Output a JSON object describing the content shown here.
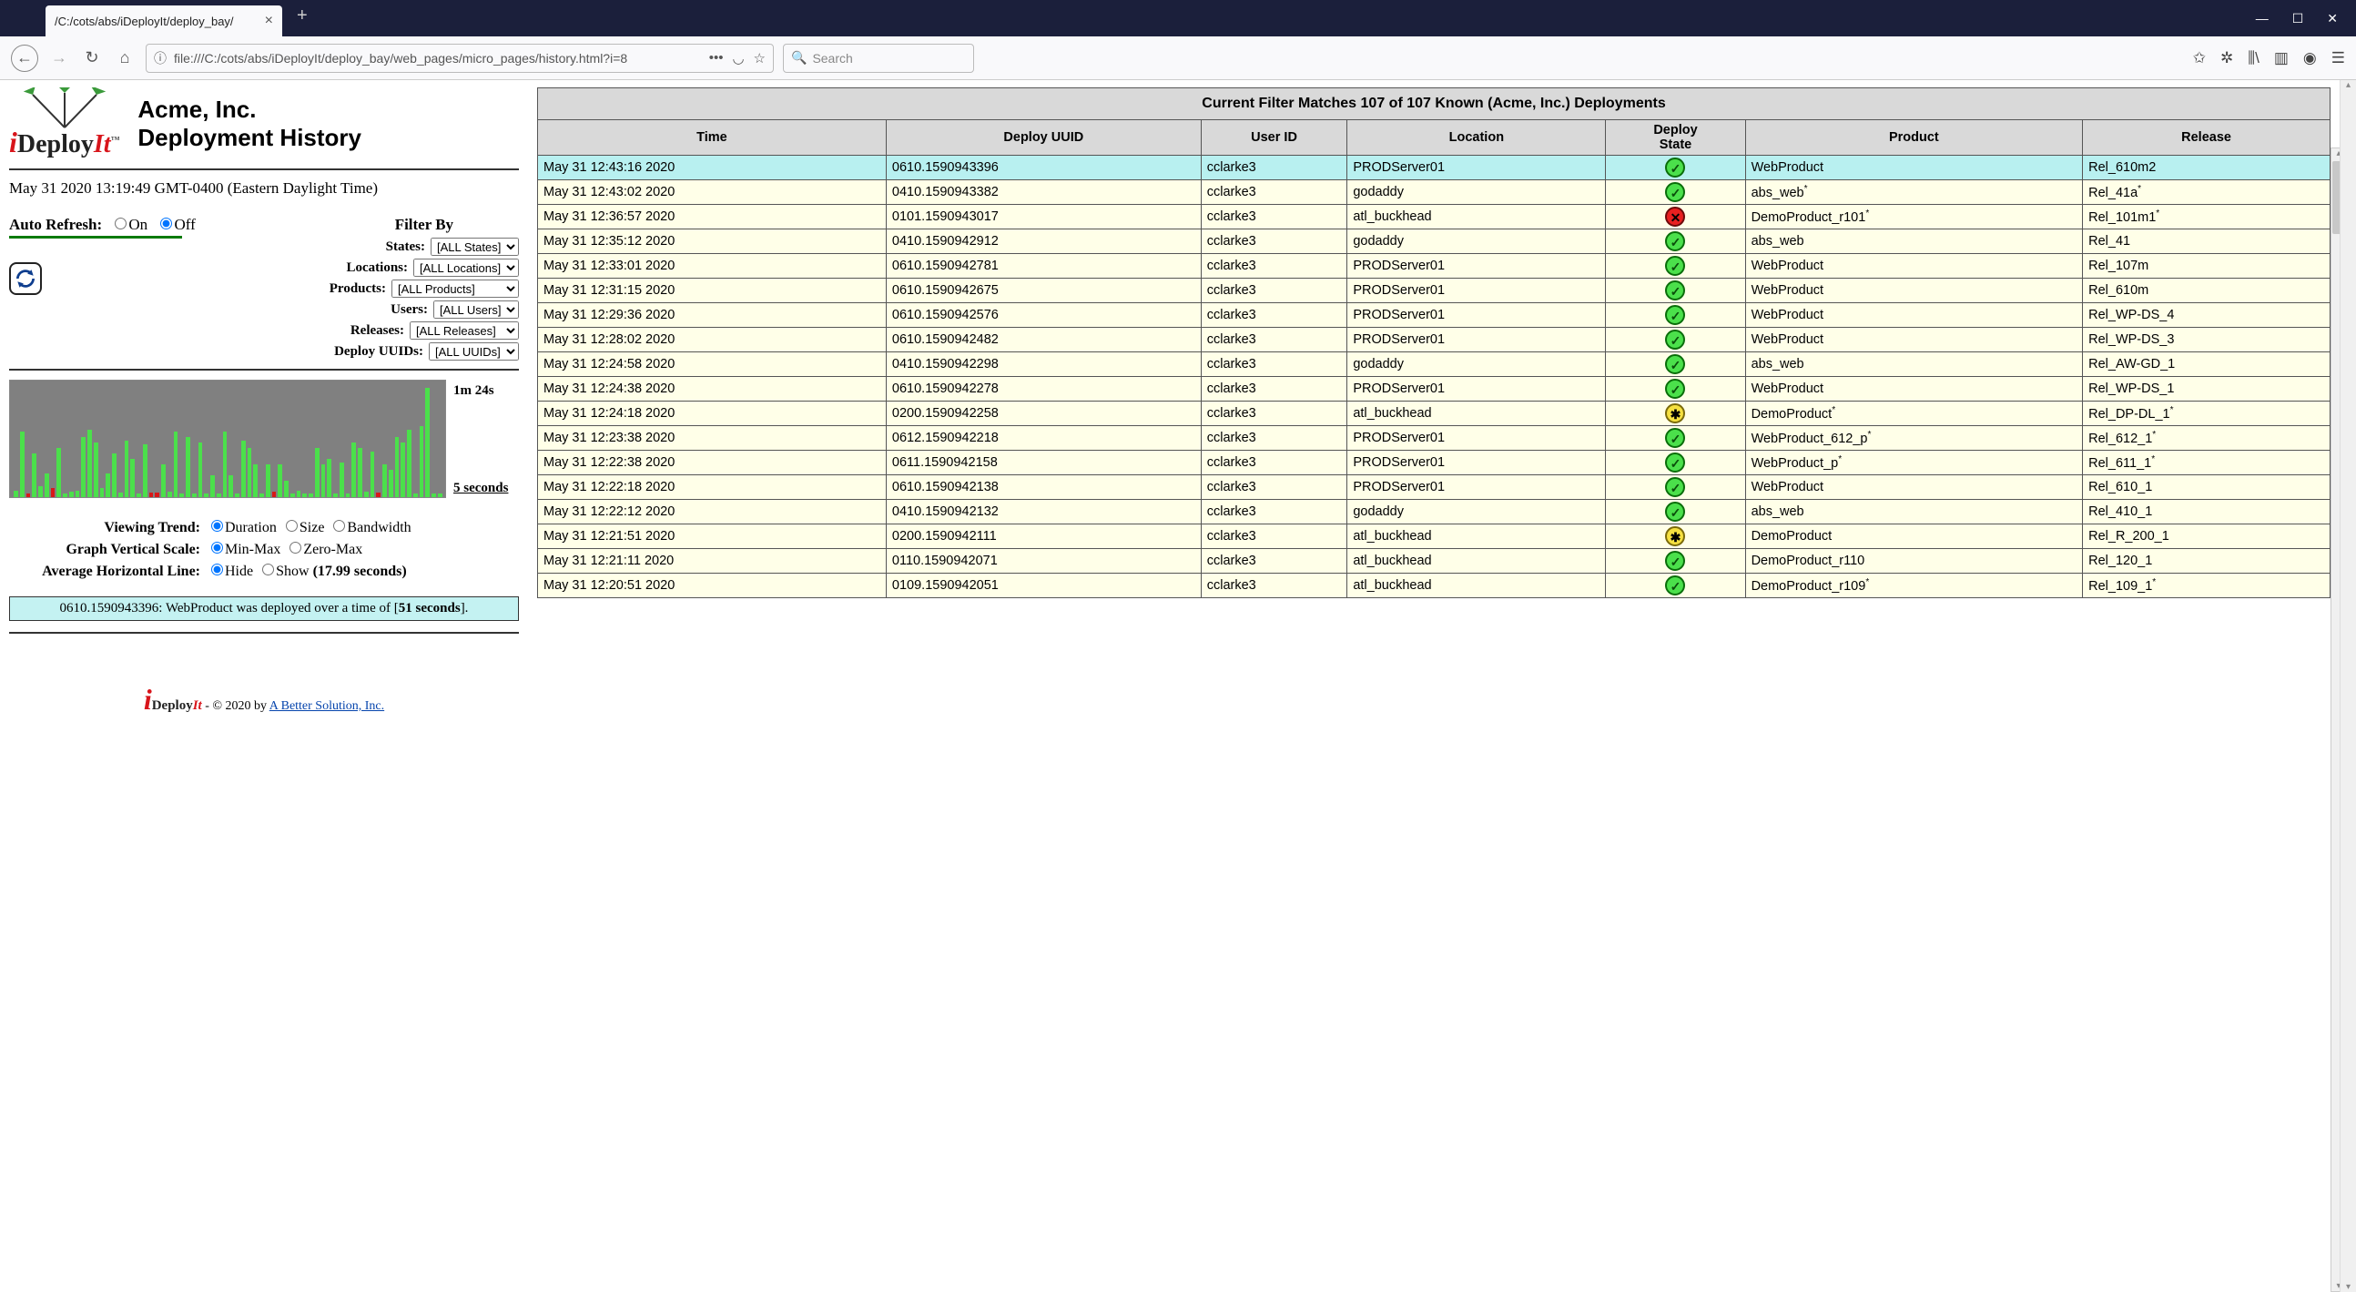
{
  "browser": {
    "tab_title": "/C:/cots/abs/iDeployIt/deploy_bay/",
    "url": "file:///C:/cots/abs/iDeployIt/deploy_bay/web_pages/micro_pages/history.html?i=8",
    "search_placeholder": "Search"
  },
  "page": {
    "company": "Acme, Inc.",
    "page_title": "Deployment History",
    "timestamp": "May 31 2020 13:19:49 GMT-0400 (Eastern Daylight Time)",
    "auto_refresh_label": "Auto Refresh:",
    "on_label": "On",
    "off_label": "Off",
    "auto_refresh_value": "Off",
    "filter_by_label": "Filter By",
    "filters": {
      "states": {
        "label": "States:",
        "value": "[ALL States]"
      },
      "locations": {
        "label": "Locations:",
        "value": "[ALL Locations]"
      },
      "products": {
        "label": "Products:",
        "value": "[ALL Products]"
      },
      "users": {
        "label": "Users:",
        "value": "[ALL Users]"
      },
      "releases": {
        "label": "Releases:",
        "value": "[ALL Releases]"
      },
      "uuids": {
        "label": "Deploy UUIDs:",
        "value": "[ALL UUIDs]"
      }
    },
    "chart": {
      "max_label": "1m 24s",
      "min_label": "5 seconds",
      "bg_color": "#808080",
      "bar_color_ok": "#4be04b",
      "bar_color_fail": "#d81818",
      "bars": [
        {
          "h": 6,
          "c": "ok"
        },
        {
          "h": 60,
          "c": "ok"
        },
        {
          "h": 3,
          "c": "fail"
        },
        {
          "h": 40,
          "c": "ok"
        },
        {
          "h": 10,
          "c": "ok"
        },
        {
          "h": 22,
          "c": "ok"
        },
        {
          "h": 8,
          "c": "fail"
        },
        {
          "h": 45,
          "c": "ok"
        },
        {
          "h": 3,
          "c": "ok"
        },
        {
          "h": 5,
          "c": "ok"
        },
        {
          "h": 6,
          "c": "ok"
        },
        {
          "h": 55,
          "c": "ok"
        },
        {
          "h": 62,
          "c": "ok"
        },
        {
          "h": 50,
          "c": "ok"
        },
        {
          "h": 8,
          "c": "ok"
        },
        {
          "h": 22,
          "c": "ok"
        },
        {
          "h": 40,
          "c": "ok"
        },
        {
          "h": 4,
          "c": "ok"
        },
        {
          "h": 52,
          "c": "ok"
        },
        {
          "h": 35,
          "c": "ok"
        },
        {
          "h": 3,
          "c": "ok"
        },
        {
          "h": 48,
          "c": "ok"
        },
        {
          "h": 4,
          "c": "fail"
        },
        {
          "h": 4,
          "c": "fail"
        },
        {
          "h": 30,
          "c": "ok"
        },
        {
          "h": 5,
          "c": "ok"
        },
        {
          "h": 60,
          "c": "ok"
        },
        {
          "h": 3,
          "c": "ok"
        },
        {
          "h": 55,
          "c": "ok"
        },
        {
          "h": 3,
          "c": "ok"
        },
        {
          "h": 50,
          "c": "ok"
        },
        {
          "h": 3,
          "c": "ok"
        },
        {
          "h": 20,
          "c": "ok"
        },
        {
          "h": 3,
          "c": "ok"
        },
        {
          "h": 60,
          "c": "ok"
        },
        {
          "h": 20,
          "c": "ok"
        },
        {
          "h": 3,
          "c": "ok"
        },
        {
          "h": 52,
          "c": "ok"
        },
        {
          "h": 45,
          "c": "ok"
        },
        {
          "h": 30,
          "c": "ok"
        },
        {
          "h": 3,
          "c": "ok"
        },
        {
          "h": 30,
          "c": "ok"
        },
        {
          "h": 5,
          "c": "fail"
        },
        {
          "h": 30,
          "c": "ok"
        },
        {
          "h": 15,
          "c": "ok"
        },
        {
          "h": 3,
          "c": "ok"
        },
        {
          "h": 6,
          "c": "ok"
        },
        {
          "h": 3,
          "c": "ok"
        },
        {
          "h": 3,
          "c": "ok"
        },
        {
          "h": 45,
          "c": "ok"
        },
        {
          "h": 30,
          "c": "ok"
        },
        {
          "h": 35,
          "c": "ok"
        },
        {
          "h": 3,
          "c": "ok"
        },
        {
          "h": 32,
          "c": "ok"
        },
        {
          "h": 3,
          "c": "ok"
        },
        {
          "h": 50,
          "c": "ok"
        },
        {
          "h": 45,
          "c": "ok"
        },
        {
          "h": 5,
          "c": "ok"
        },
        {
          "h": 42,
          "c": "ok"
        },
        {
          "h": 4,
          "c": "fail"
        },
        {
          "h": 30,
          "c": "ok"
        },
        {
          "h": 25,
          "c": "ok"
        },
        {
          "h": 55,
          "c": "ok"
        },
        {
          "h": 50,
          "c": "ok"
        },
        {
          "h": 62,
          "c": "ok"
        },
        {
          "h": 3,
          "c": "ok"
        },
        {
          "h": 65,
          "c": "ok"
        },
        {
          "h": 100,
          "c": "ok"
        },
        {
          "h": 3,
          "c": "ok"
        },
        {
          "h": 3,
          "c": "ok"
        }
      ]
    },
    "trend": {
      "viewing_label": "Viewing Trend:",
      "viewing_opts": [
        "Duration",
        "Size",
        "Bandwidth"
      ],
      "viewing_value": "Duration",
      "scale_label": "Graph Vertical Scale:",
      "scale_opts": [
        "Min-Max",
        "Zero-Max"
      ],
      "scale_value": "Min-Max",
      "avg_label": "Average Horizontal Line:",
      "avg_opts": [
        "Hide",
        "Show"
      ],
      "avg_value": "Hide",
      "avg_detail": "(17.99 seconds)"
    },
    "status_msg_prefix": "0610.1590943396: WebProduct was deployed over a time of [",
    "status_msg_bold": "51 seconds",
    "status_msg_suffix": "].",
    "footer_text": " - © 2020 by ",
    "footer_link": "A Better Solution, Inc."
  },
  "table": {
    "caption": "Current Filter Matches 107 of 107 Known (Acme, Inc.) Deployments",
    "columns": [
      "Time",
      "Deploy UUID",
      "User ID",
      "Location",
      "Deploy State",
      "Product",
      "Release"
    ],
    "col_widths": [
      "155",
      "140",
      "65",
      "115",
      "62",
      "150",
      "110"
    ],
    "selected_index": 0,
    "rows": [
      {
        "time": "May 31 12:43:16 2020",
        "uuid": "0610.1590943396",
        "user": "cclarke3",
        "loc": "PRODServer01",
        "state": "ok",
        "product": "WebProduct",
        "release": "Rel_610m2"
      },
      {
        "time": "May 31 12:43:02 2020",
        "uuid": "0410.1590943382",
        "user": "cclarke3",
        "loc": "godaddy",
        "state": "ok",
        "product": "abs_web*",
        "release": "Rel_41a*"
      },
      {
        "time": "May 31 12:36:57 2020",
        "uuid": "0101.1590943017",
        "user": "cclarke3",
        "loc": "atl_buckhead",
        "state": "fail",
        "product": "DemoProduct_r101*",
        "release": "Rel_101m1*"
      },
      {
        "time": "May 31 12:35:12 2020",
        "uuid": "0410.1590942912",
        "user": "cclarke3",
        "loc": "godaddy",
        "state": "ok",
        "product": "abs_web",
        "release": "Rel_41"
      },
      {
        "time": "May 31 12:33:01 2020",
        "uuid": "0610.1590942781",
        "user": "cclarke3",
        "loc": "PRODServer01",
        "state": "ok",
        "product": "WebProduct",
        "release": "Rel_107m"
      },
      {
        "time": "May 31 12:31:15 2020",
        "uuid": "0610.1590942675",
        "user": "cclarke3",
        "loc": "PRODServer01",
        "state": "ok",
        "product": "WebProduct",
        "release": "Rel_610m"
      },
      {
        "time": "May 31 12:29:36 2020",
        "uuid": "0610.1590942576",
        "user": "cclarke3",
        "loc": "PRODServer01",
        "state": "ok",
        "product": "WebProduct",
        "release": "Rel_WP-DS_4"
      },
      {
        "time": "May 31 12:28:02 2020",
        "uuid": "0610.1590942482",
        "user": "cclarke3",
        "loc": "PRODServer01",
        "state": "ok",
        "product": "WebProduct",
        "release": "Rel_WP-DS_3"
      },
      {
        "time": "May 31 12:24:58 2020",
        "uuid": "0410.1590942298",
        "user": "cclarke3",
        "loc": "godaddy",
        "state": "ok",
        "product": "abs_web",
        "release": "Rel_AW-GD_1"
      },
      {
        "time": "May 31 12:24:38 2020",
        "uuid": "0610.1590942278",
        "user": "cclarke3",
        "loc": "PRODServer01",
        "state": "ok",
        "product": "WebProduct",
        "release": "Rel_WP-DS_1"
      },
      {
        "time": "May 31 12:24:18 2020",
        "uuid": "0200.1590942258",
        "user": "cclarke3",
        "loc": "atl_buckhead",
        "state": "warn",
        "product": "DemoProduct*",
        "release": "Rel_DP-DL_1*"
      },
      {
        "time": "May 31 12:23:38 2020",
        "uuid": "0612.1590942218",
        "user": "cclarke3",
        "loc": "PRODServer01",
        "state": "ok",
        "product": "WebProduct_612_p*",
        "release": "Rel_612_1*"
      },
      {
        "time": "May 31 12:22:38 2020",
        "uuid": "0611.1590942158",
        "user": "cclarke3",
        "loc": "PRODServer01",
        "state": "ok",
        "product": "WebProduct_p*",
        "release": "Rel_611_1*"
      },
      {
        "time": "May 31 12:22:18 2020",
        "uuid": "0610.1590942138",
        "user": "cclarke3",
        "loc": "PRODServer01",
        "state": "ok",
        "product": "WebProduct",
        "release": "Rel_610_1"
      },
      {
        "time": "May 31 12:22:12 2020",
        "uuid": "0410.1590942132",
        "user": "cclarke3",
        "loc": "godaddy",
        "state": "ok",
        "product": "abs_web",
        "release": "Rel_410_1"
      },
      {
        "time": "May 31 12:21:51 2020",
        "uuid": "0200.1590942111",
        "user": "cclarke3",
        "loc": "atl_buckhead",
        "state": "warn",
        "product": "DemoProduct",
        "release": "Rel_R_200_1"
      },
      {
        "time": "May 31 12:21:11 2020",
        "uuid": "0110.1590942071",
        "user": "cclarke3",
        "loc": "atl_buckhead",
        "state": "ok",
        "product": "DemoProduct_r110",
        "release": "Rel_120_1"
      },
      {
        "time": "May 31 12:20:51 2020",
        "uuid": "0109.1590942051",
        "user": "cclarke3",
        "loc": "atl_buckhead",
        "state": "ok",
        "product": "DemoProduct_r109*",
        "release": "Rel_109_1*"
      }
    ]
  }
}
